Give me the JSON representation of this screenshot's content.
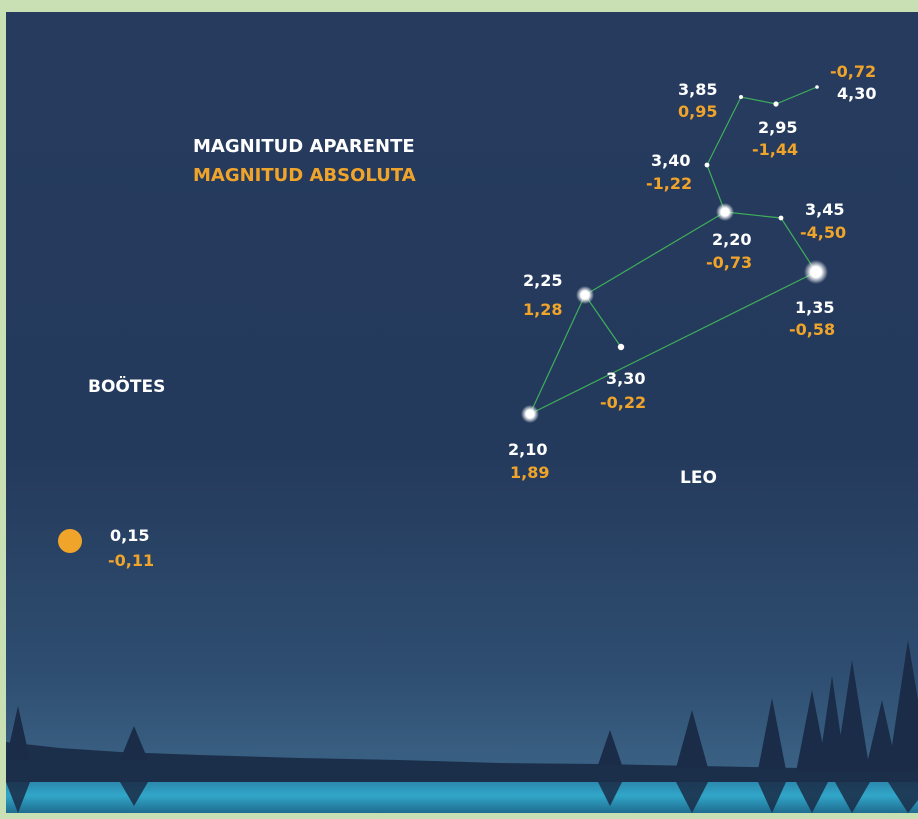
{
  "legend": {
    "apparent": "MAGNITUD APARENTE",
    "absolute": "MAGNITUD ABSOLUTA"
  },
  "constellations": {
    "bootes": "BOÖTES",
    "leo": "LEO"
  },
  "stars": [
    {
      "id": "star-a",
      "apparent": "4,30",
      "absolute": "-0,72"
    },
    {
      "id": "star-b",
      "apparent": "3,85",
      "absolute": "0,95"
    },
    {
      "id": "star-c",
      "apparent": "2,95",
      "absolute": "-1,44"
    },
    {
      "id": "star-d",
      "apparent": "3,40",
      "absolute": "-1,22"
    },
    {
      "id": "star-e",
      "apparent": "3,45",
      "absolute": "-4,50"
    },
    {
      "id": "star-f",
      "apparent": "2,20",
      "absolute": "-0,73"
    },
    {
      "id": "star-g",
      "apparent": "2,25",
      "absolute": "1,28"
    },
    {
      "id": "star-h",
      "apparent": "1,35",
      "absolute": "-0,58"
    },
    {
      "id": "star-i",
      "apparent": "3,30",
      "absolute": "-0,22"
    },
    {
      "id": "star-j",
      "apparent": "2,10",
      "absolute": "1,89"
    },
    {
      "id": "arcturus",
      "apparent": "0,15",
      "absolute": "-0,11"
    }
  ],
  "colors": {
    "apparent_text": "#ffffff",
    "absolute_text": "#f0a52a",
    "line": "#3fae5a",
    "sky_top": "#263b5e",
    "arcturus": "#f0a52a"
  }
}
